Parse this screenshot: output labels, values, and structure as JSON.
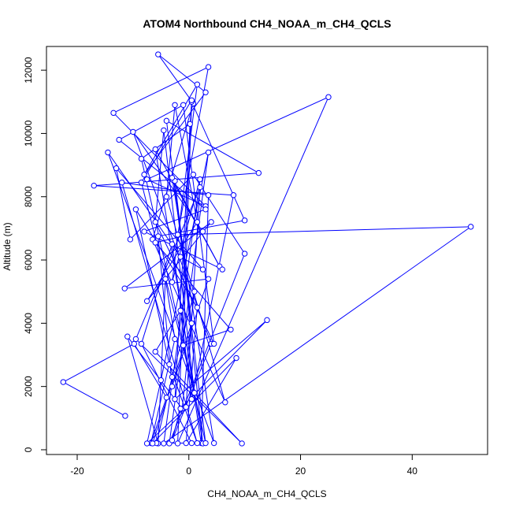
{
  "chart_data": {
    "type": "line",
    "title": "ATOM4 Northbound CH4_NOAA_m_CH4_QCLS",
    "xlabel": "CH4_NOAA_m_CH4_QCLS",
    "ylabel": "Altitude (m)",
    "xlim": [
      -25.5,
      53.5
    ],
    "ylim": [
      -150,
      12750
    ],
    "xticks": [
      -20,
      0,
      20,
      40
    ],
    "yticks": [
      0,
      2000,
      4000,
      6000,
      8000,
      10000,
      12000
    ],
    "grid": false,
    "colors": {
      "series": "#0000ff"
    },
    "series": [
      {
        "markers": "open-circle",
        "x": [
          -11.4,
          -22.5,
          -9.8,
          -4.0,
          -6.8,
          -2.5,
          -4.2,
          -5.5,
          -11.0,
          -1.2,
          1.0,
          -3.0,
          -5.8,
          0.5,
          -8.5,
          -3.0,
          2.2,
          3.5,
          -12.0,
          1.5,
          -3.5,
          -9.5,
          1.5,
          -0.5,
          8.5,
          -6.5,
          0.5,
          -2.5,
          2.5,
          -6.0,
          5.5,
          -3.0,
          4.5,
          -14.5,
          -1.5,
          2.5,
          -13.0,
          -10.5,
          0.8,
          10.0,
          -3.5,
          3.5,
          -5.0,
          -7.5,
          -0.5,
          2.0,
          -9.5,
          9.5,
          -6.0,
          -1.5,
          0.5,
          8.0,
          -17.0,
          12.5,
          -4.0,
          3.0,
          -8.5,
          0.2,
          -2.0,
          25.0,
          -7.5,
          3.0,
          -13.5,
          3.5,
          -2.0,
          50.5,
          -4.5,
          2.0,
          -3.0,
          1.5,
          -8.0,
          3.0,
          -5.5,
          0.8,
          -6.5,
          6.5,
          -4.0,
          -2.5,
          1.5,
          -7.5,
          4.0,
          -11.5,
          3.5,
          -3.0,
          -5.5,
          10.0,
          0.5,
          -1.0,
          7.5,
          -6.0,
          2.5,
          -10.0,
          4.0,
          -3.0,
          -1.5,
          14.0,
          -2.5,
          0.5,
          -8.5,
          1.0,
          -4.5,
          -6.0,
          4.5,
          -1.0,
          -12.5,
          3.0,
          -8.0,
          6.0
        ],
        "y": [
          1070,
          2140,
          3350,
          1650,
          210,
          3500,
          5400,
          200,
          3580,
          1300,
          5000,
          2300,
          210,
          210,
          3350,
          6500,
          210,
          8050,
          8450,
          210,
          2700,
          7600,
          4500,
          210,
          2900,
          200,
          4000,
          8500,
          200,
          9500,
          5800,
          8600,
          210,
          9400,
          6100,
          5700,
          8900,
          6650,
          8700,
          6200,
          200,
          9400,
          2200,
          200,
          1350,
          8300,
          3500,
          200,
          3100,
          4400,
          1600,
          8050,
          8350,
          8750,
          10400,
          210,
          9200,
          10300,
          200,
          11150,
          8550,
          7700,
          10650,
          12100,
          6800,
          7050,
          200,
          8550,
          5300,
          11550,
          8700,
          11300,
          12500,
          10950,
          6650,
          1500,
          8000,
          10900,
          7200,
          4700,
          7200,
          5100,
          5400,
          2000,
          6750,
          7250,
          11000,
          3300,
          3800,
          6550,
          6900,
          10050,
          3350,
          300,
          1300,
          4100,
          1600,
          11050,
          8450,
          1800,
          10100,
          7200,
          3350,
          10900,
          9800,
          7600,
          6900,
          5700
        ]
      }
    ]
  }
}
